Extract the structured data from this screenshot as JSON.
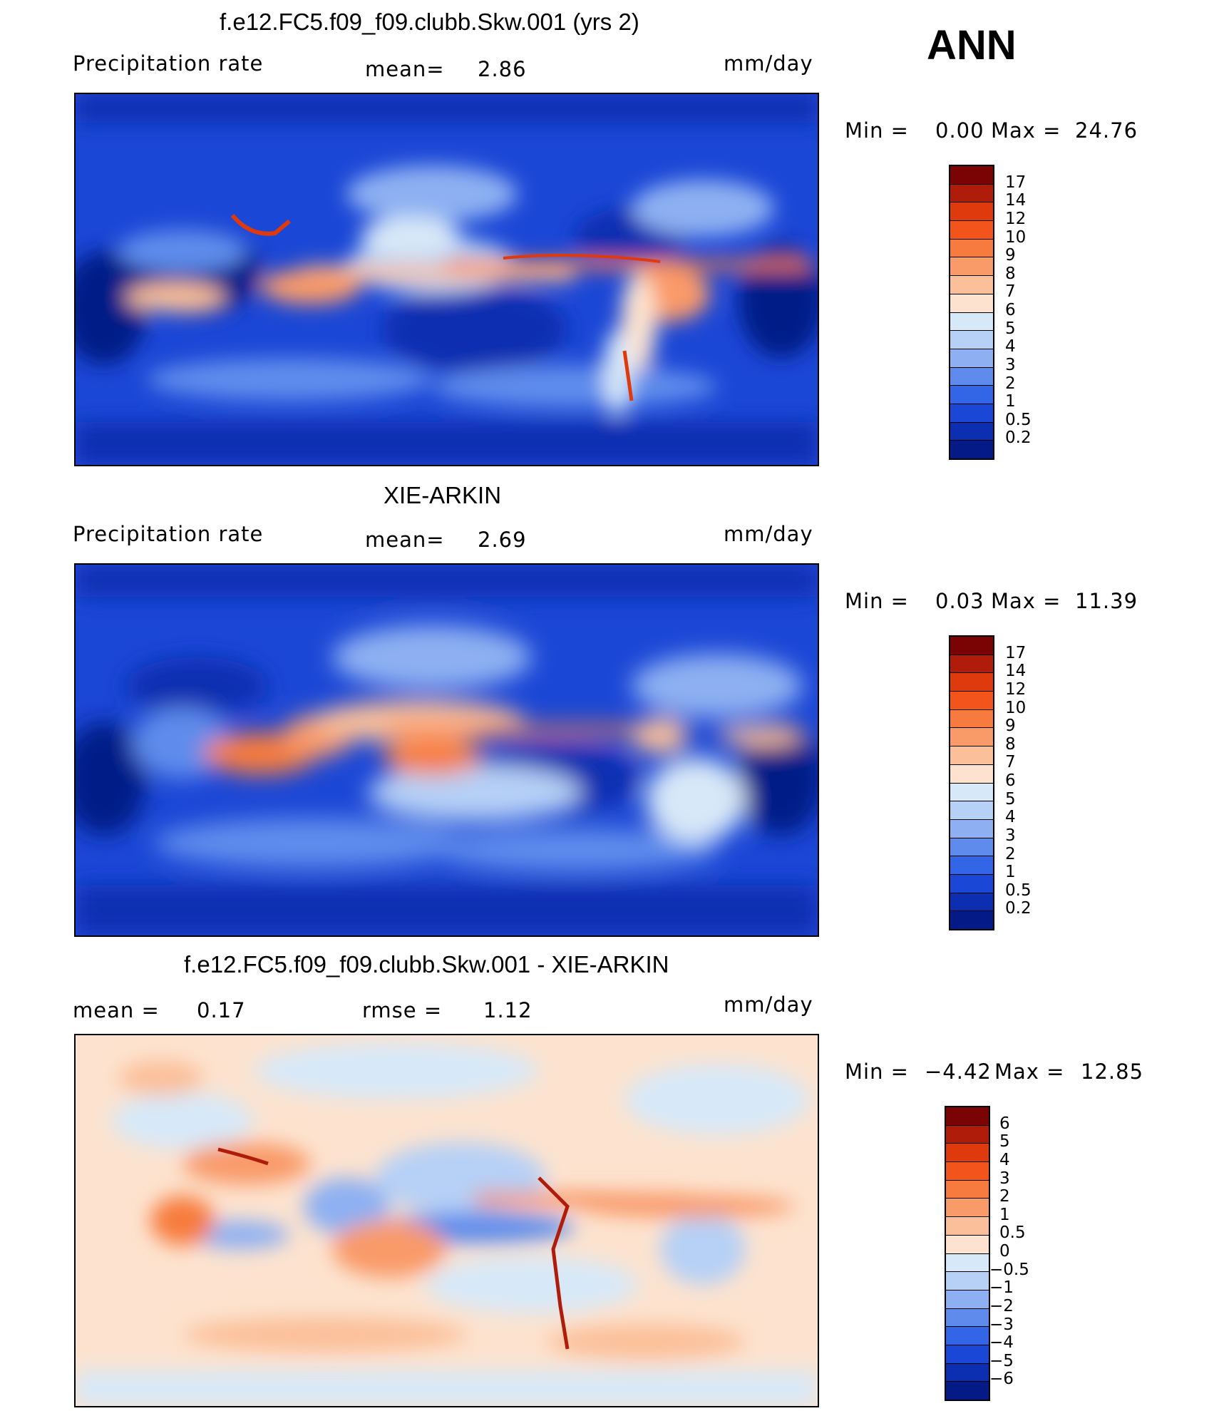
{
  "header": {
    "season": "ANN"
  },
  "panels": [
    {
      "title": "f.e12.FC5.f09_f09.clubb.Skw.001 (yrs 2)",
      "var_label": "Precipitation  rate",
      "stat_label": "mean=",
      "stat_value": "2.86",
      "units": "mm/day",
      "min_label": "Min  =",
      "min_value": "0.00",
      "max_label": "Max  =",
      "max_value": "24.76"
    },
    {
      "title": "XIE-ARKIN",
      "var_label": "Precipitation  rate",
      "stat_label": "mean=",
      "stat_value": "2.69",
      "units": "mm/day",
      "min_label": "Min  =",
      "min_value": "0.03",
      "max_label": "Max  =",
      "max_value": "11.39"
    },
    {
      "title": "f.e12.FC5.f09_f09.clubb.Skw.001 - XIE-ARKIN",
      "mean_label": "mean  =",
      "mean_value": "0.17",
      "rmse_label": "rmse  =",
      "rmse_value": "1.12",
      "units": "mm/day",
      "min_label": "Min  =",
      "min_value": "−4.42",
      "max_label": "Max  =",
      "max_value": "12.85"
    }
  ],
  "colorbars": {
    "precip": {
      "labels": [
        "17",
        "14",
        "12",
        "10",
        "9",
        "8",
        "7",
        "6",
        "5",
        "4",
        "3",
        "2",
        "1",
        "0.5",
        "0.2"
      ],
      "colors": [
        "#7a0403",
        "#b01c0a",
        "#de3a0e",
        "#f2541c",
        "#f77b3e",
        "#f99a69",
        "#fbbf99",
        "#fde3cf",
        "#d7e8f8",
        "#b6d0f6",
        "#8eb0f2",
        "#5f8cec",
        "#3366e6",
        "#1b47d6",
        "#0c2eb0",
        "#031a87"
      ]
    },
    "diff": {
      "labels": [
        "6",
        "5",
        "4",
        "3",
        "2",
        "1",
        "0.5",
        "0",
        "−0.5",
        "−1",
        "−2",
        "−3",
        "−4",
        "−5",
        "−6"
      ],
      "colors": [
        "#7a0403",
        "#b01c0a",
        "#de3a0e",
        "#f2541c",
        "#f77b3e",
        "#f99a69",
        "#fbbf99",
        "#fde3cf",
        "#d7e8f8",
        "#b6d0f6",
        "#8eb0f2",
        "#5f8cec",
        "#3366e6",
        "#1b47d6",
        "#0c2eb0",
        "#031a87"
      ]
    }
  }
}
